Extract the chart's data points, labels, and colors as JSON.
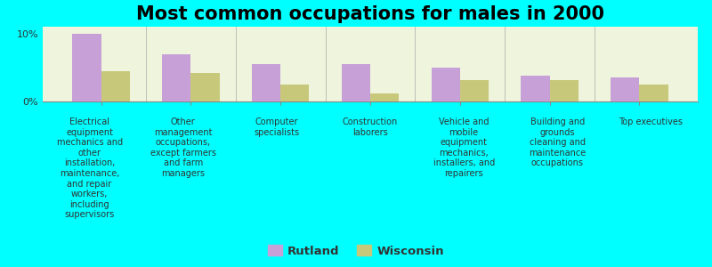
{
  "title": "Most common occupations for males in 2000",
  "background_color": "#00FFFF",
  "plot_bg_color": "#EEF5DC",
  "categories": [
    "Electrical\nequipment\nmechanics and\nother\ninstallation,\nmaintenance,\nand repair\nworkers,\nincluding\nsupervisors",
    "Other\nmanagement\noccupations,\nexcept farmers\nand farm\nmanagers",
    "Computer\nspecialists",
    "Construction\nlaborers",
    "Vehicle and\nmobile\nequipment\nmechanics,\ninstallers, and\nrepairers",
    "Building and\ngrounds\ncleaning and\nmaintenance\noccupations",
    "Top executives"
  ],
  "rutland_values": [
    10.0,
    7.0,
    5.5,
    5.5,
    5.0,
    3.8,
    3.5
  ],
  "wisconsin_values": [
    4.5,
    4.2,
    2.5,
    1.2,
    3.2,
    3.2,
    2.5
  ],
  "rutland_color": "#C8A0D8",
  "wisconsin_color": "#C8C87A",
  "ylim": [
    0,
    11
  ],
  "yticks": [
    0,
    10
  ],
  "ytick_labels": [
    "0%",
    "10%"
  ],
  "legend_rutland": "Rutland",
  "legend_wisconsin": "Wisconsin",
  "bar_width": 0.32,
  "title_fontsize": 15,
  "tick_fontsize": 8,
  "label_fontsize": 7.0
}
